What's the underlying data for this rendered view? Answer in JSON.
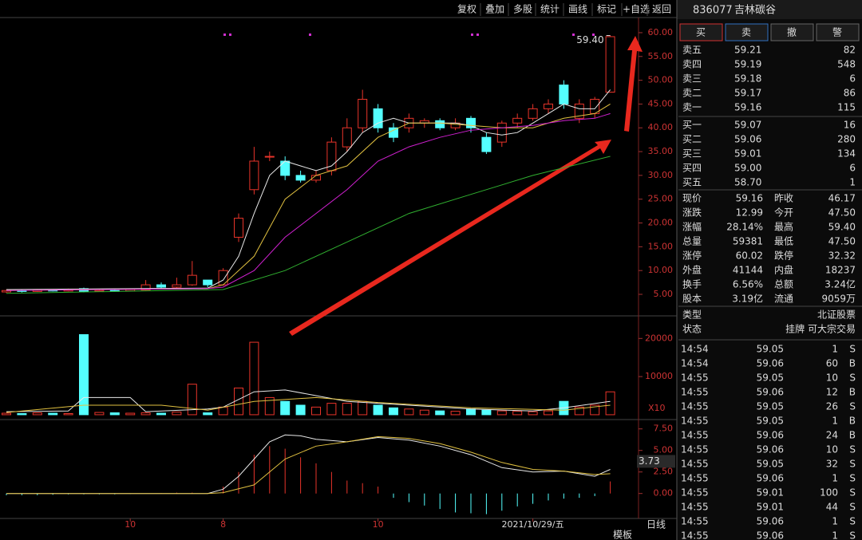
{
  "toolbar": [
    "复权",
    "叠加",
    "多股",
    "统计",
    "画线",
    "标记",
    "+自选",
    "返回"
  ],
  "header": {
    "code": "836077",
    "name": "吉林碳谷"
  },
  "buttons": [
    "买",
    "卖",
    "撤",
    "警"
  ],
  "asks": [
    {
      "label": "卖五",
      "price": "59.21",
      "volume": "82"
    },
    {
      "label": "卖四",
      "price": "59.19",
      "volume": "548"
    },
    {
      "label": "卖三",
      "price": "59.18",
      "volume": "6"
    },
    {
      "label": "卖二",
      "price": "59.17",
      "volume": "86"
    },
    {
      "label": "卖一",
      "price": "59.16",
      "volume": "115"
    }
  ],
  "bids": [
    {
      "label": "买一",
      "price": "59.07",
      "volume": "16"
    },
    {
      "label": "买二",
      "price": "59.06",
      "volume": "280"
    },
    {
      "label": "买三",
      "price": "59.01",
      "volume": "134"
    },
    {
      "label": "买四",
      "price": "59.00",
      "volume": "6"
    },
    {
      "label": "买五",
      "price": "58.70",
      "volume": "1"
    }
  ],
  "stats": [
    [
      "现价",
      "59.16",
      "昨收",
      "46.17"
    ],
    [
      "涨跌",
      "12.99",
      "今开",
      "47.50"
    ],
    [
      "涨幅",
      "28.14%",
      "最高",
      "59.40"
    ],
    [
      "总量",
      "59381",
      "最低",
      "47.50"
    ],
    [
      "涨停",
      "60.02",
      "跌停",
      "32.32"
    ],
    [
      "外盘",
      "41144",
      "内盘",
      "18237"
    ],
    [
      "换手",
      "6.56%",
      "总额",
      "3.24亿"
    ],
    [
      "股本",
      "3.19亿",
      "流通",
      "9059万"
    ]
  ],
  "info": [
    [
      "类型",
      "北证股票"
    ],
    [
      "状态",
      "挂牌  可大宗交易"
    ]
  ],
  "trades": [
    [
      "14:54",
      "59.05",
      "1",
      "S"
    ],
    [
      "14:54",
      "59.06",
      "60",
      "B"
    ],
    [
      "14:55",
      "59.05",
      "10",
      "S"
    ],
    [
      "14:55",
      "59.06",
      "12",
      "B"
    ],
    [
      "14:55",
      "59.05",
      "26",
      "S"
    ],
    [
      "14:55",
      "59.05",
      "1",
      "B"
    ],
    [
      "14:55",
      "59.06",
      "24",
      "B"
    ],
    [
      "14:55",
      "59.06",
      "10",
      "S"
    ],
    [
      "14:55",
      "59.05",
      "32",
      "S"
    ],
    [
      "14:55",
      "59.06",
      "1",
      "S"
    ],
    [
      "14:55",
      "59.01",
      "100",
      "S"
    ],
    [
      "14:55",
      "59.01",
      "44",
      "S"
    ],
    [
      "14:55",
      "59.06",
      "1",
      "S"
    ],
    [
      "14:55",
      "59.06",
      "1",
      "S"
    ]
  ],
  "footer": "模板",
  "chart_data": [
    {
      "type": "candlestick",
      "open": [
        5.5,
        5.8,
        5.6,
        5.9,
        5.7,
        6.2,
        5.6,
        5.8,
        5.7,
        5.9,
        7,
        6.5,
        7,
        8,
        7,
        17,
        27,
        34,
        33,
        30,
        29,
        31,
        36,
        40,
        44,
        40,
        40,
        41,
        41.5,
        40,
        42,
        38,
        37,
        41,
        42,
        44,
        49,
        42,
        43,
        47.5
      ],
      "close": [
        5.8,
        5.6,
        5.9,
        5.7,
        6,
        5.6,
        5.8,
        5.7,
        6,
        7,
        6.5,
        7,
        9,
        7,
        10,
        21,
        33,
        34,
        30,
        29,
        30,
        37,
        40,
        46,
        40,
        38,
        42,
        41.5,
        40,
        41,
        40,
        35,
        41,
        42,
        44,
        45,
        45,
        45,
        46,
        59.16
      ],
      "low": [
        5.3,
        5.4,
        5.5,
        5.6,
        5.6,
        5.4,
        5.5,
        5.5,
        5.6,
        5.8,
        6.3,
        6.3,
        6.8,
        6.5,
        6.8,
        16,
        26,
        33,
        29,
        28.5,
        28.5,
        30,
        35,
        39,
        39,
        37,
        39,
        40,
        39.5,
        39.5,
        39,
        34.5,
        36,
        40,
        41.5,
        43,
        44,
        41,
        42,
        47.5
      ],
      "high": [
        6,
        6,
        6.1,
        6,
        6.2,
        6.4,
        6,
        5.9,
        6.2,
        8,
        7.5,
        8.5,
        12,
        8,
        10.5,
        22,
        36,
        35,
        34,
        31,
        31,
        38,
        42,
        48,
        45,
        41,
        43,
        42,
        42,
        42,
        42.5,
        39,
        41.5,
        43,
        45,
        46,
        50,
        46,
        46.5,
        59.4
      ],
      "lines": [
        {
          "color": "#e8e8e8",
          "x": [
            0,
            13,
            14,
            15,
            16,
            17,
            18,
            19,
            20,
            21,
            22,
            23,
            24,
            25,
            26,
            27,
            28,
            29,
            30,
            31,
            32,
            33,
            34,
            35,
            36,
            37,
            38,
            39
          ],
          "values": [
            6,
            6.3,
            8,
            13,
            22,
            30,
            33,
            32,
            31,
            32,
            35,
            39,
            41,
            42,
            41,
            41,
            41,
            41,
            40.5,
            39,
            38.5,
            39,
            41,
            43,
            45,
            44,
            44,
            48
          ]
        },
        {
          "color": "#e0c040",
          "x": [
            0,
            13,
            14,
            16,
            18,
            20,
            22,
            24,
            26,
            28,
            30,
            32,
            34,
            36,
            38,
            39
          ],
          "values": [
            5.8,
            6.2,
            7,
            13,
            25,
            30,
            32,
            38,
            41,
            41,
            40.5,
            40,
            40,
            42,
            43,
            45
          ]
        },
        {
          "color": "#d020d0",
          "x": [
            0,
            13,
            14,
            16,
            18,
            20,
            22,
            24,
            26,
            28,
            30,
            32,
            34,
            36,
            38,
            39
          ],
          "values": [
            5.8,
            6.2,
            6.5,
            10,
            17,
            22,
            27,
            33,
            36,
            38,
            39.5,
            40,
            40.5,
            41.5,
            42,
            43
          ]
        },
        {
          "color": "#30b030",
          "x": [
            0,
            14,
            18,
            22,
            26,
            30,
            34,
            39
          ],
          "values": [
            5.2,
            6,
            10,
            16,
            22,
            26,
            30,
            34
          ]
        }
      ],
      "ylim": [
        0.64,
        63.18
      ],
      "yticks": [
        {
          "value": 5,
          "label": "5.00"
        },
        {
          "value": 10,
          "label": "10.00"
        },
        {
          "value": 15,
          "label": "15.00"
        },
        {
          "value": 20,
          "label": "20.00"
        },
        {
          "value": 25,
          "label": "25.00"
        },
        {
          "value": 30,
          "label": "30.00"
        },
        {
          "value": 35,
          "label": "35.00"
        },
        {
          "value": 40,
          "label": "40.00"
        },
        {
          "value": 45,
          "label": "45.00"
        },
        {
          "value": 50,
          "label": "50.00"
        },
        {
          "value": 55,
          "label": "55.00"
        },
        {
          "value": 60,
          "label": "60.00"
        }
      ],
      "x_labels": [
        {
          "value": 8,
          "label": "10"
        },
        {
          "value": 14,
          "label": "8"
        },
        {
          "value": 24,
          "label": "10"
        },
        {
          "value": 34,
          "label": "2021/10/29/五"
        }
      ],
      "period": "日线",
      "max_label": {
        "value": 59.4,
        "label": "59.40"
      }
    },
    {
      "type": "bar",
      "values": [
        400,
        300,
        500,
        400,
        300,
        21000,
        600,
        500,
        400,
        500,
        400,
        700,
        8000,
        500,
        2000,
        7000,
        19000,
        4500,
        3500,
        2500,
        2000,
        3000,
        3000,
        3500,
        2500,
        1800,
        1500,
        1200,
        1000,
        900,
        1500,
        1200,
        1000,
        900,
        800,
        1000,
        3500,
        2000,
        2500,
        6000
      ],
      "lines": [
        {
          "color": "#e8e8e8",
          "x": [
            0,
            4,
            5,
            8,
            9,
            13,
            14,
            15,
            16,
            18,
            20,
            22,
            26,
            30,
            34,
            36,
            39
          ],
          "values": [
            800,
            1000,
            4500,
            4500,
            800,
            1500,
            2000,
            4000,
            6000,
            6500,
            5000,
            3500,
            2500,
            1500,
            1000,
            1800,
            3500
          ]
        },
        {
          "color": "#e0c040",
          "x": [
            0,
            5,
            10,
            13,
            16,
            20,
            24,
            30,
            36,
            39
          ],
          "values": [
            600,
            2500,
            2500,
            1200,
            3500,
            4500,
            3200,
            1800,
            1200,
            2500
          ]
        }
      ],
      "ylim": [
        -850,
        25500
      ],
      "yticks": [
        10000,
        20000
      ],
      "unit": "X10"
    },
    {
      "type": "macd",
      "values": [
        -0.2,
        -0.2,
        -0.2,
        -0.15,
        -0.1,
        -0.1,
        -0.1,
        -0.1,
        -0.05,
        0,
        0.05,
        0.1,
        0.1,
        0.05,
        0.8,
        2.5,
        4.5,
        5.5,
        5.2,
        4.2,
        3.5,
        2.5,
        1.5,
        1.2,
        0.8,
        -0.5,
        -1,
        -1.4,
        -1.8,
        -2.2,
        -2.3,
        -2.4,
        -2,
        -1.5,
        -1.2,
        -0.8,
        -0.6,
        -0.5,
        -0.3,
        1.4
      ],
      "lines": [
        {
          "color": "#e8e8e8",
          "x": [
            0,
            13,
            14,
            15,
            16,
            17,
            18,
            19,
            20,
            22,
            24,
            26,
            28,
            30,
            32,
            34,
            36,
            38,
            39
          ],
          "values": [
            0,
            0,
            0.5,
            2,
            4,
            6,
            6.8,
            6.7,
            6.3,
            6,
            6.5,
            6.2,
            5.5,
            4.5,
            3,
            2.5,
            2.6,
            2,
            2.8
          ]
        },
        {
          "color": "#e0c040",
          "x": [
            0,
            13,
            14,
            16,
            18,
            20,
            22,
            24,
            26,
            28,
            30,
            32,
            34,
            36,
            38,
            39
          ],
          "values": [
            0,
            0,
            0.1,
            1,
            4,
            5.5,
            6,
            6.6,
            6.4,
            5.8,
            4.8,
            3.6,
            2.8,
            2.6,
            2.2,
            2.3
          ]
        }
      ],
      "ylim": [
        -2.9,
        8.4
      ],
      "yticks": [
        {
          "value": 0,
          "label": "0.00"
        },
        {
          "value": 2.5,
          "label": "2.50"
        },
        {
          "value": 5,
          "label": "5.00"
        },
        {
          "value": 7.5,
          "label": "7.50"
        }
      ],
      "current": {
        "value": 3.73,
        "label": "3.73"
      }
    }
  ]
}
